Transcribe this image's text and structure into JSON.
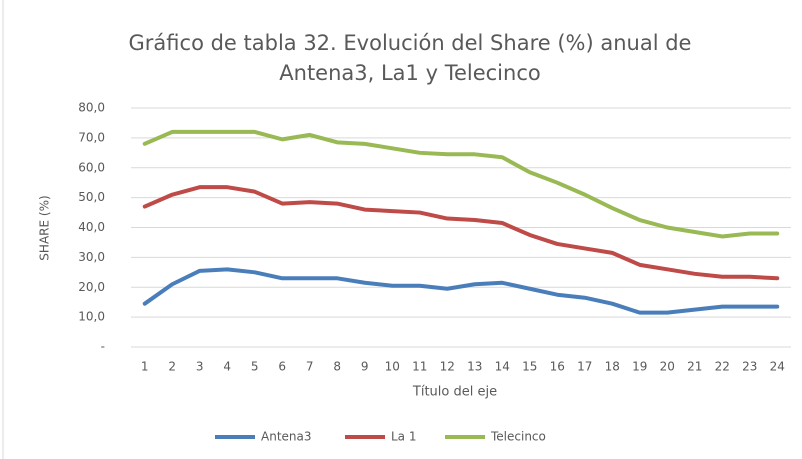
{
  "chart_data": {
    "type": "line",
    "title": [
      "Gráfico de tabla 32. Evolución del Share (%) anual de",
      "Antena3, La1 y Telecinco"
    ],
    "x_label": "Título del eje",
    "y_label": "SHARE (%)",
    "categories": [
      "1",
      "2",
      "3",
      "4",
      "5",
      "6",
      "7",
      "8",
      "9",
      "10",
      "11",
      "12",
      "13",
      "14",
      "15",
      "16",
      "17",
      "18",
      "19",
      "20",
      "21",
      "22",
      "23",
      "24"
    ],
    "series": [
      {
        "name": "Antena3",
        "color": "#4a7ebb",
        "values": [
          14.5,
          21,
          25.5,
          26,
          25,
          23,
          23,
          23,
          21.5,
          20.5,
          20.5,
          19.5,
          21,
          21.5,
          19.5,
          17.5,
          16.5,
          14.5,
          11.5,
          11.5,
          12.5,
          13.5,
          13.5,
          13.5
        ]
      },
      {
        "name": "La 1",
        "color": "#be4b48",
        "values": [
          47,
          51,
          53.5,
          53.5,
          52,
          48,
          48.5,
          48,
          46,
          45.5,
          45,
          43,
          42.5,
          41.5,
          37.5,
          34.5,
          33,
          31.5,
          27.5,
          26,
          24.5,
          23.5,
          23.5,
          23
        ]
      },
      {
        "name": "Telecinco",
        "color": "#98b954",
        "values": [
          68,
          72,
          72,
          72,
          72,
          69.5,
          71,
          68.5,
          68,
          66.5,
          65,
          64.5,
          64.5,
          63.5,
          58.5,
          55,
          51,
          46.5,
          42.5,
          40,
          38.5,
          37,
          38,
          38
        ]
      }
    ],
    "ylim": [
      0,
      80
    ],
    "yticks": [
      {
        "value": 0,
        "label": "-"
      },
      {
        "value": 10,
        "label": "10,0"
      },
      {
        "value": 20,
        "label": "20,0"
      },
      {
        "value": 30,
        "label": "30,0"
      },
      {
        "value": 40,
        "label": "40,0"
      },
      {
        "value": 50,
        "label": "50,0"
      },
      {
        "value": 60,
        "label": "60,0"
      },
      {
        "value": 70,
        "label": "70,0"
      },
      {
        "value": 80,
        "label": "80,0"
      }
    ],
    "grid": true,
    "legend": "bottom"
  }
}
